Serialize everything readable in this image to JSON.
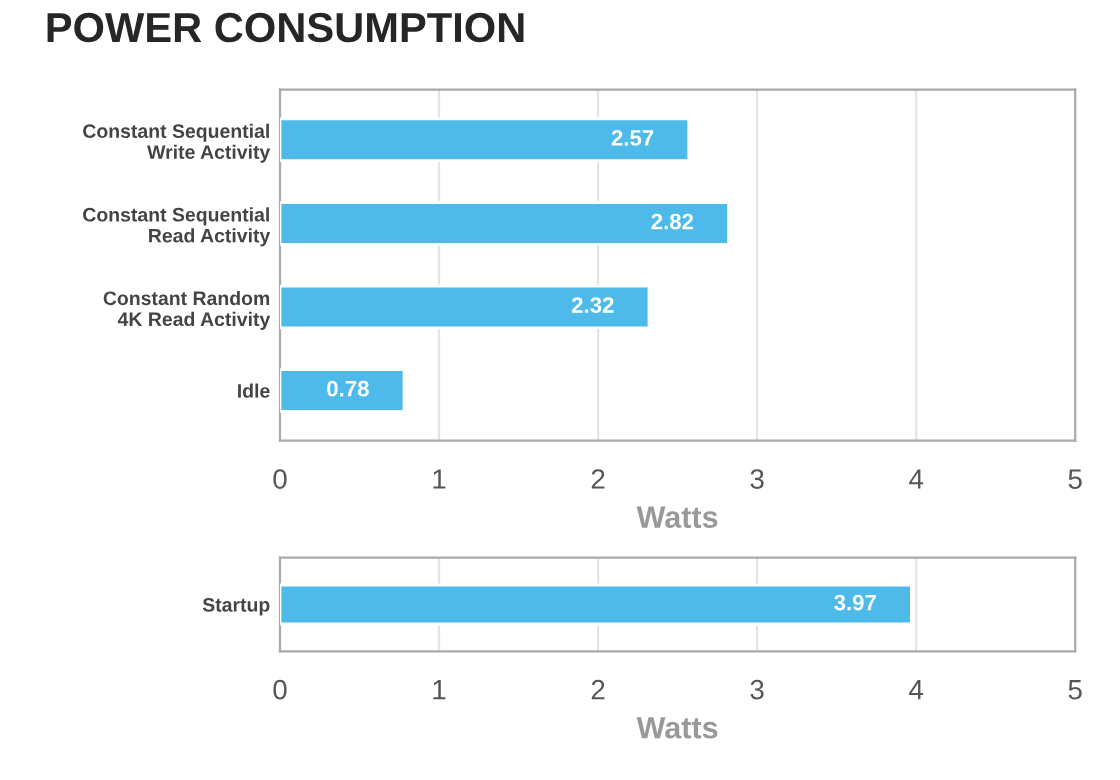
{
  "chart_data": [
    {
      "type": "bar",
      "title": "POWER CONSUMPTION",
      "orientation": "horizontal",
      "categories": [
        "Constant Sequential\nWrite Activity",
        "Constant Sequential\nRead Activity",
        "Constant Random\n4K Read Activity",
        "Idle"
      ],
      "values": [
        2.57,
        2.82,
        2.32,
        0.78
      ],
      "color": "#4dbaea",
      "xlim": [
        0,
        5
      ],
      "xticks": [
        0,
        1,
        2,
        3,
        4,
        5
      ],
      "xlabel": "Watts",
      "grid": "x",
      "data_labels": true,
      "legend": false
    },
    {
      "type": "bar",
      "orientation": "horizontal",
      "categories": [
        "Startup"
      ],
      "values": [
        3.97
      ],
      "color": "#4dbaea",
      "xlim": [
        0,
        5
      ],
      "xticks": [
        0,
        1,
        2,
        3,
        4,
        5
      ],
      "xlabel": "Watts",
      "grid": "x",
      "data_labels": true,
      "legend": false
    }
  ]
}
